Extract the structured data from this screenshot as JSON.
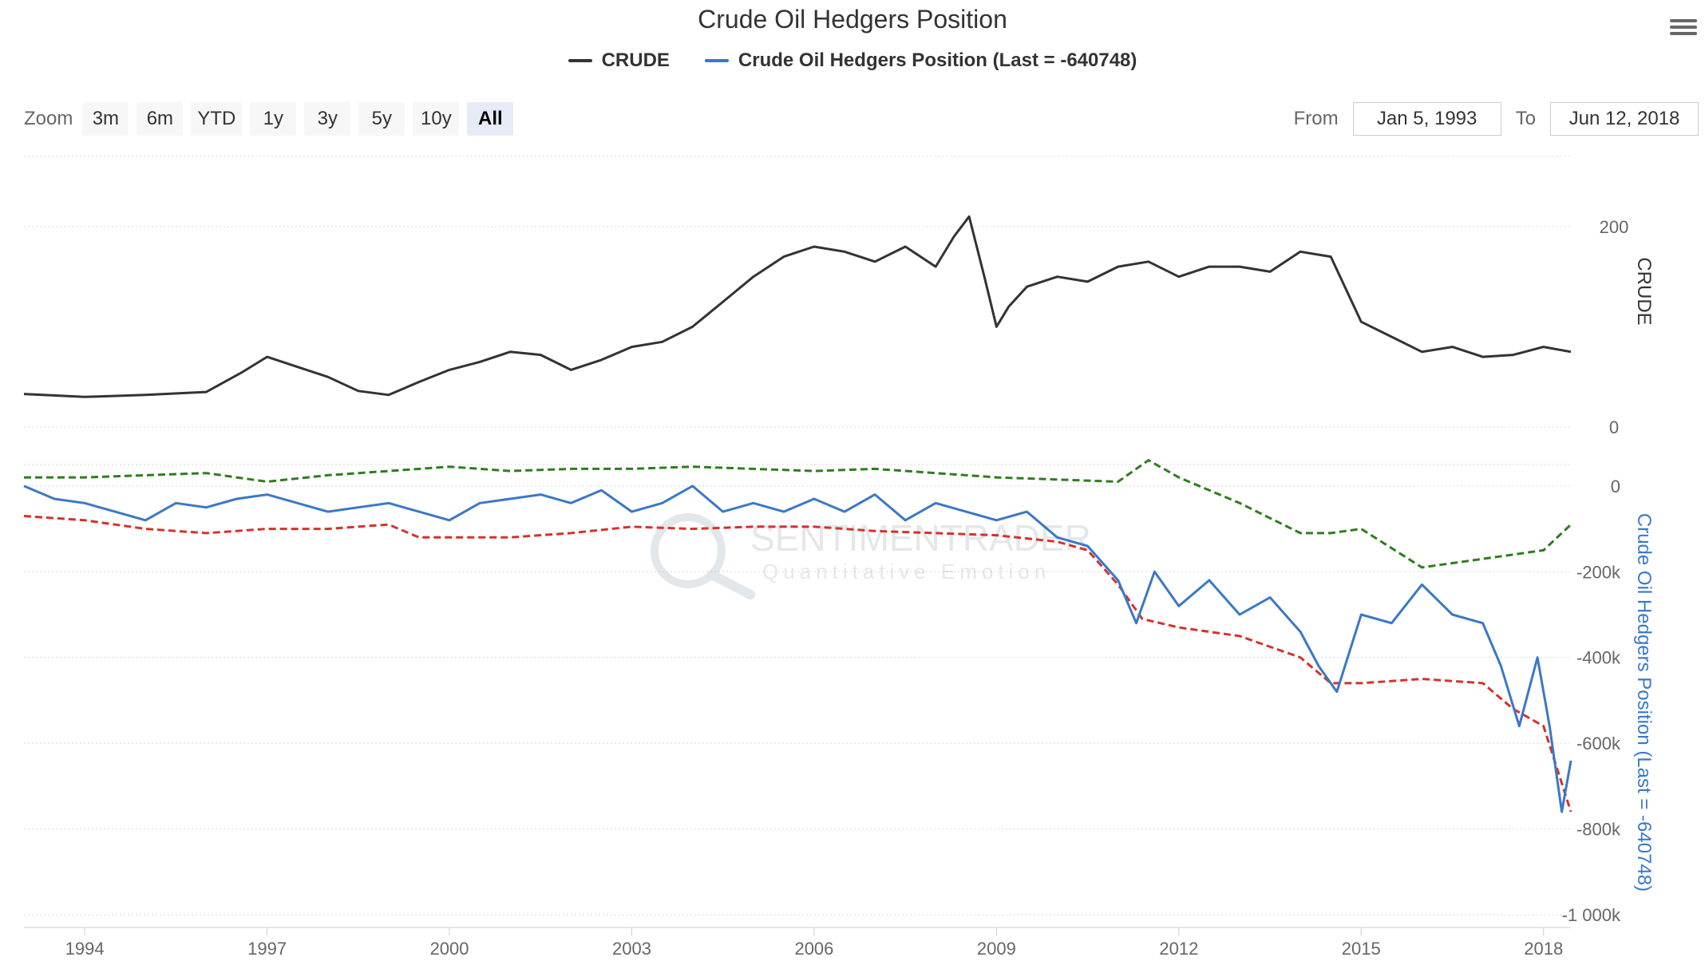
{
  "title": "Crude Oil Hedgers Position",
  "legend": [
    {
      "name": "CRUDE",
      "color": "#333333"
    },
    {
      "name": "Crude Oil Hedgers Position (Last = -640748)",
      "color": "#3a78c8"
    }
  ],
  "zoom": {
    "label": "Zoom",
    "buttons": [
      "3m",
      "6m",
      "YTD",
      "1y",
      "3y",
      "5y",
      "10y",
      "All"
    ],
    "selected": "All"
  },
  "range": {
    "from_label": "From",
    "from_value": "Jan 5, 1993",
    "to_label": "To",
    "to_value": "Jun 12, 2018"
  },
  "watermark": {
    "line1": "SENTIMENTRADER",
    "line2": "Quantitative Emotion"
  },
  "colors": {
    "price": "#333333",
    "hedgers": "#3a78c8",
    "upper_band": "#2e7d1e",
    "lower_band": "#d6312b",
    "grid": "#d8d8d8"
  },
  "chart_data": [
    {
      "type": "line",
      "name": "CRUDE",
      "ylabel": "CRUDE",
      "ylim": [
        0,
        270
      ],
      "yticks": [
        {
          "v": 0,
          "label": "0"
        },
        {
          "v": 200,
          "label": "200"
        }
      ],
      "grid": true,
      "series": [
        {
          "name": "CRUDE",
          "x": [
            1993.0,
            1994.0,
            1995.0,
            1996.0,
            1996.6,
            1997.0,
            1997.5,
            1998.0,
            1998.5,
            1999.0,
            1999.5,
            2000.0,
            2000.5,
            2001.0,
            2001.5,
            2002.0,
            2002.5,
            2003.0,
            2003.5,
            2004.0,
            2004.5,
            2005.0,
            2005.5,
            2006.0,
            2006.5,
            2007.0,
            2007.5,
            2008.0,
            2008.3,
            2008.55,
            2008.8,
            2009.0,
            2009.2,
            2009.5,
            2010.0,
            2010.5,
            2011.0,
            2011.5,
            2012.0,
            2012.5,
            2013.0,
            2013.5,
            2014.0,
            2014.5,
            2015.0,
            2015.5,
            2016.0,
            2016.5,
            2017.0,
            2017.5,
            2018.0,
            2018.45
          ],
          "values": [
            33,
            30,
            32,
            35,
            55,
            70,
            60,
            50,
            36,
            32,
            45,
            57,
            65,
            75,
            72,
            57,
            67,
            80,
            85,
            100,
            125,
            150,
            170,
            180,
            175,
            165,
            180,
            160,
            190,
            210,
            150,
            100,
            120,
            140,
            150,
            145,
            160,
            165,
            150,
            160,
            160,
            155,
            175,
            170,
            105,
            90,
            75,
            80,
            70,
            72,
            80,
            75
          ]
        }
      ]
    },
    {
      "type": "line",
      "ylabel": "Crude Oil Hedgers Position (Last = -640748)",
      "ylim": [
        -1000000,
        50000
      ],
      "yticks": [
        {
          "v": 0,
          "label": "0"
        },
        {
          "v": -200000,
          "label": "-200k"
        },
        {
          "v": -400000,
          "label": "-400k"
        },
        {
          "v": -600000,
          "label": "-600k"
        },
        {
          "v": -800000,
          "label": "-800k"
        },
        {
          "v": -1000000,
          "label": "-1 000k"
        }
      ],
      "grid": true,
      "xticks": [
        1994,
        1997,
        2000,
        2003,
        2006,
        2009,
        2012,
        2015,
        2018
      ],
      "series": [
        {
          "name": "Crude Oil Hedgers Position (Last = -640748)",
          "x": [
            1993.0,
            1993.5,
            1994.0,
            1994.5,
            1995.0,
            1995.5,
            1996.0,
            1996.5,
            1997.0,
            1997.5,
            1998.0,
            1998.5,
            1999.0,
            1999.5,
            2000.0,
            2000.5,
            2001.0,
            2001.5,
            2002.0,
            2002.5,
            2003.0,
            2003.5,
            2004.0,
            2004.5,
            2005.0,
            2005.5,
            2006.0,
            2006.5,
            2007.0,
            2007.5,
            2008.0,
            2008.5,
            2009.0,
            2009.5,
            2010.0,
            2010.5,
            2011.0,
            2011.3,
            2011.6,
            2012.0,
            2012.5,
            2013.0,
            2013.5,
            2014.0,
            2014.3,
            2014.6,
            2015.0,
            2015.5,
            2016.0,
            2016.5,
            2017.0,
            2017.3,
            2017.6,
            2017.9,
            2018.1,
            2018.3,
            2018.45
          ],
          "values": [
            0,
            -30000,
            -40000,
            -60000,
            -80000,
            -40000,
            -50000,
            -30000,
            -20000,
            -40000,
            -60000,
            -50000,
            -40000,
            -60000,
            -80000,
            -40000,
            -30000,
            -20000,
            -40000,
            -10000,
            -60000,
            -40000,
            0,
            -60000,
            -40000,
            -60000,
            -30000,
            -60000,
            -20000,
            -80000,
            -40000,
            -60000,
            -80000,
            -60000,
            -120000,
            -140000,
            -220000,
            -320000,
            -200000,
            -280000,
            -220000,
            -300000,
            -260000,
            -340000,
            -420000,
            -480000,
            -300000,
            -320000,
            -230000,
            -300000,
            -320000,
            -420000,
            -560000,
            -400000,
            -560000,
            -760000,
            -640748
          ]
        },
        {
          "name": "upper band",
          "x": [
            1993.0,
            1994.0,
            1995.0,
            1996.0,
            1997.0,
            1998.0,
            1999.0,
            2000.0,
            2001.0,
            2002.0,
            2003.0,
            2004.0,
            2005.0,
            2006.0,
            2007.0,
            2008.0,
            2009.0,
            2010.0,
            2011.0,
            2011.5,
            2012.0,
            2013.0,
            2014.0,
            2014.5,
            2015.0,
            2016.0,
            2017.0,
            2018.0,
            2018.45
          ],
          "values": [
            20000,
            20000,
            25000,
            30000,
            10000,
            25000,
            35000,
            45000,
            35000,
            40000,
            40000,
            45000,
            40000,
            35000,
            40000,
            30000,
            20000,
            15000,
            10000,
            60000,
            20000,
            -40000,
            -110000,
            -110000,
            -100000,
            -190000,
            -170000,
            -150000,
            -90000
          ]
        },
        {
          "name": "lower band",
          "x": [
            1993.0,
            1994.0,
            1995.0,
            1996.0,
            1997.0,
            1998.0,
            1999.0,
            1999.5,
            2000.0,
            2001.0,
            2002.0,
            2003.0,
            2004.0,
            2005.0,
            2006.0,
            2007.0,
            2008.0,
            2009.0,
            2010.0,
            2010.5,
            2011.0,
            2011.4,
            2012.0,
            2013.0,
            2014.0,
            2014.5,
            2015.0,
            2016.0,
            2017.0,
            2017.5,
            2018.0,
            2018.45
          ],
          "values": [
            -70000,
            -80000,
            -100000,
            -110000,
            -100000,
            -100000,
            -90000,
            -120000,
            -120000,
            -120000,
            -110000,
            -95000,
            -100000,
            -95000,
            -95000,
            -105000,
            -110000,
            -115000,
            -130000,
            -150000,
            -230000,
            -310000,
            -330000,
            -350000,
            -400000,
            -460000,
            -460000,
            -450000,
            -460000,
            -520000,
            -560000,
            -760000
          ]
        }
      ]
    }
  ]
}
